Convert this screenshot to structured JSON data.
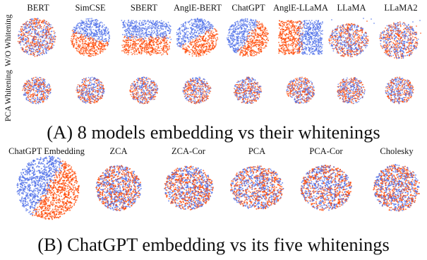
{
  "panel_a": {
    "column_labels": [
      "BERT",
      "SimCSE",
      "SBERT",
      "AnglE-BERT",
      "ChatGPT",
      "AnglE-LLaMA",
      "LLaMA",
      "LLaMA2"
    ],
    "row_labels": [
      "W/O Whitening",
      "PCA Whitening"
    ],
    "caption": "(A) 8 models embedding vs their whitenings"
  },
  "panel_b": {
    "column_labels": [
      "ChatGPT Embedding",
      "ZCA",
      "ZCA-Cor",
      "PCA",
      "PCA-Cor",
      "Cholesky"
    ],
    "caption": "(B) ChatGPT embedding vs its five whitenings"
  },
  "colors": {
    "series_red": "#ff4500",
    "series_blue": "#4d6fe8"
  }
}
